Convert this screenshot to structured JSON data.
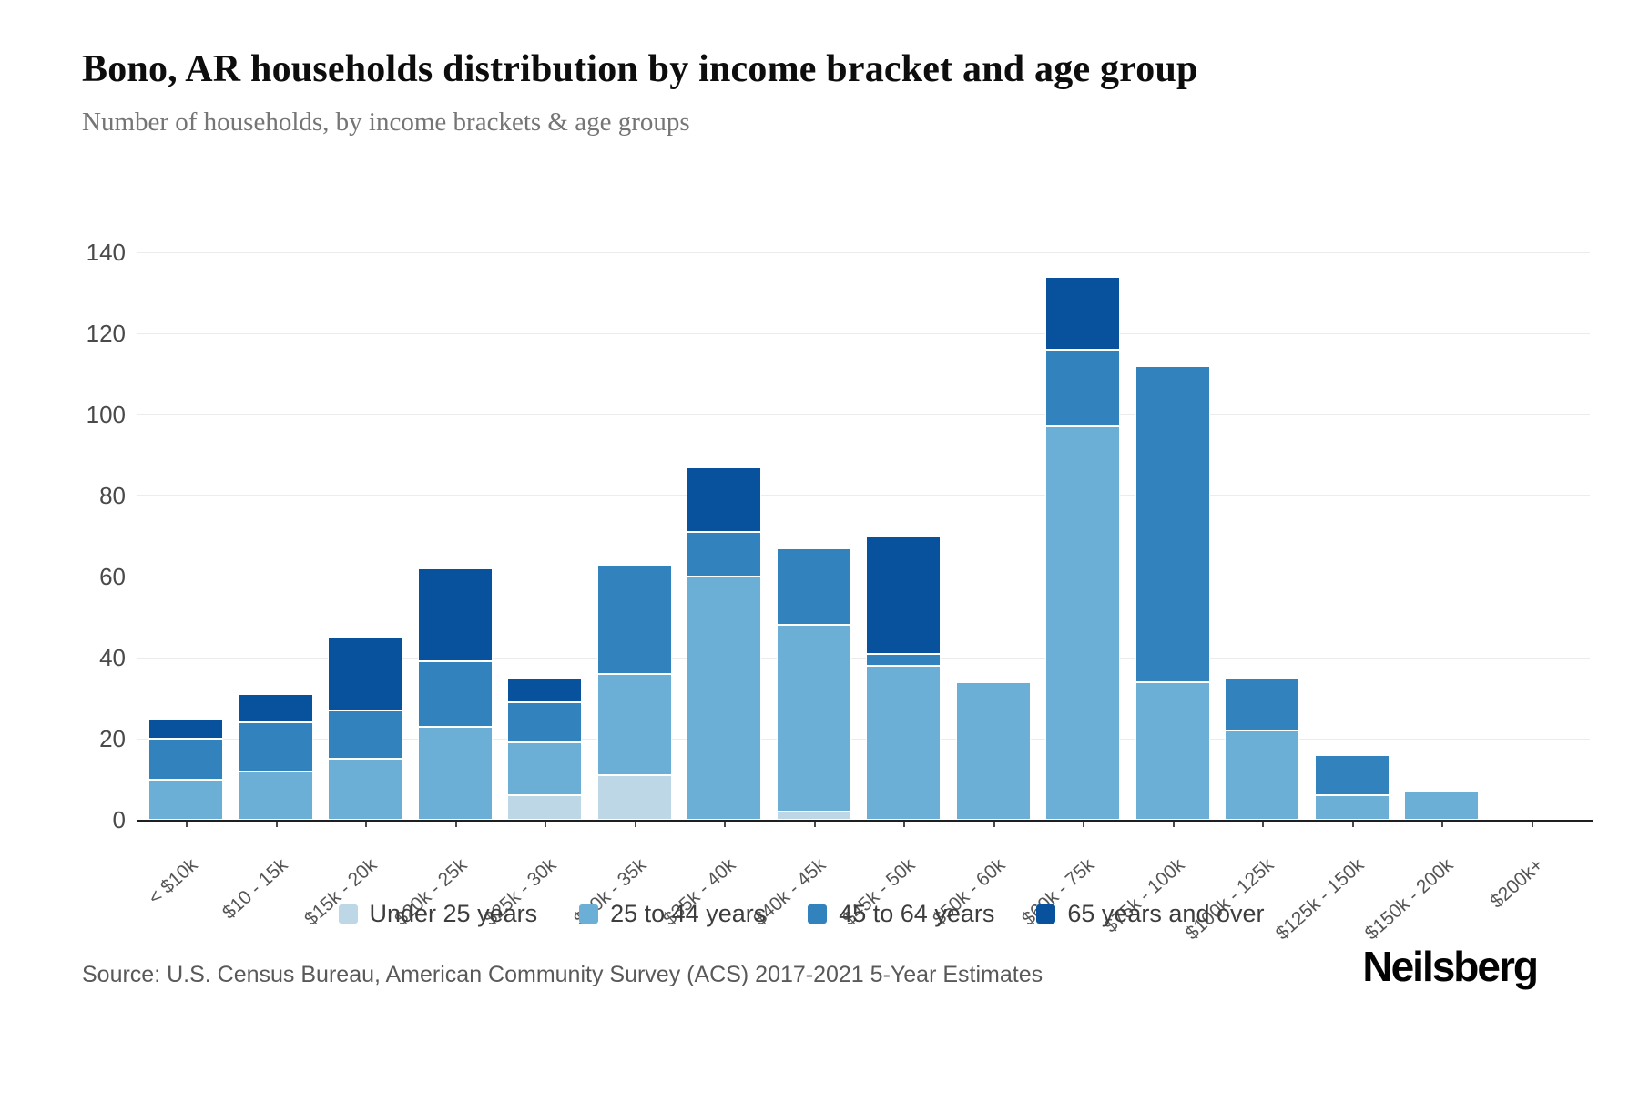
{
  "header": {
    "title": "Bono, AR households distribution by income bracket and age group",
    "subtitle": "Number of households, by income brackets & age groups"
  },
  "chart_data": {
    "type": "bar",
    "stacked": true,
    "title": "Bono, AR households distribution by income bracket and age group",
    "subtitle": "Number of households, by income brackets & age groups",
    "xlabel": "",
    "ylabel": "",
    "ylim": [
      0,
      140
    ],
    "y_ticks": [
      0,
      20,
      40,
      60,
      80,
      100,
      120,
      140
    ],
    "grid": true,
    "legend_position": "bottom",
    "categories": [
      "< $10k",
      "$10 - 15k",
      "$15k - 20k",
      "$20k - 25k",
      "$25k - 30k",
      "$30k - 35k",
      "$35k - 40k",
      "$40k - 45k",
      "$45k - 50k",
      "$50k - 60k",
      "$60k - 75k",
      "$75k - 100k",
      "$100k - 125k",
      "$125k - 150k",
      "$150k - 200k",
      "$200k+"
    ],
    "series": [
      {
        "name": "Under 25 years",
        "color": "#bdd7e7",
        "values": [
          0,
          0,
          0,
          0,
          6,
          11,
          0,
          2,
          0,
          0,
          0,
          0,
          0,
          0,
          0,
          0
        ]
      },
      {
        "name": "25 to 44 years",
        "color": "#6baed6",
        "values": [
          10,
          12,
          15,
          23,
          13,
          25,
          60,
          46,
          38,
          34,
          97,
          34,
          22,
          6,
          7,
          0
        ]
      },
      {
        "name": "45 to 64 years",
        "color": "#3182bd",
        "values": [
          10,
          12,
          12,
          16,
          10,
          27,
          11,
          19,
          3,
          0,
          19,
          78,
          13,
          10,
          0,
          0
        ]
      },
      {
        "name": "65 years and over",
        "color": "#08519c",
        "values": [
          5,
          7,
          18,
          23,
          6,
          0,
          16,
          0,
          29,
          0,
          18,
          0,
          0,
          0,
          0,
          0
        ]
      }
    ],
    "totals": [
      25,
      31,
      45,
      62,
      35,
      63,
      87,
      67,
      70,
      34,
      134,
      112,
      35,
      16,
      7,
      0
    ]
  },
  "footer": {
    "source": "Source: U.S. Census Bureau, American Community Survey (ACS) 2017-2021 5-Year Estimates",
    "brand": "Neilsberg"
  }
}
